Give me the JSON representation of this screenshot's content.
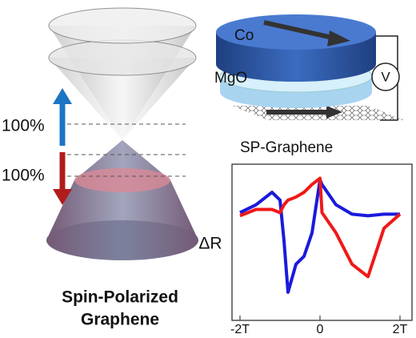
{
  "diagram": {
    "cone_labels": [
      "100%",
      "100%"
    ],
    "caption": [
      "Spin-Polarized",
      "Graphene"
    ],
    "device": {
      "top_layer": "Co",
      "barrier": "MgO",
      "meter": "V",
      "channel": "SP-Graphene"
    }
  },
  "chart_data": {
    "type": "line",
    "y_label": "ΔR",
    "x": [
      -2,
      -1.6,
      -1.2,
      -1.0,
      -0.9,
      -0.8,
      -0.6,
      -0.4,
      -0.2,
      0,
      0.05,
      0.4,
      0.8,
      1.2,
      1.6,
      2
    ],
    "series": [
      {
        "color": "#1a1adc",
        "values": [
          6.9,
          7.4,
          8.2,
          7.7,
          5.1,
          1.8,
          3.6,
          4.1,
          5.6,
          9.0,
          8.7,
          7.4,
          6.8,
          6.7,
          6.8,
          6.8
        ]
      },
      {
        "color": "#f01818",
        "values": [
          6.7,
          7.1,
          7.1,
          6.9,
          7.4,
          7.7,
          7.9,
          8.2,
          8.7,
          9.1,
          6.9,
          5.6,
          3.6,
          2.8,
          5.9,
          6.8
        ]
      }
    ],
    "xlim": [
      -2.2,
      2.3
    ],
    "ylim": [
      0,
      10
    ],
    "xticks": [
      {
        "value": -2,
        "label": "-2T"
      },
      0,
      {
        "value": 2,
        "label": "2T"
      }
    ]
  }
}
